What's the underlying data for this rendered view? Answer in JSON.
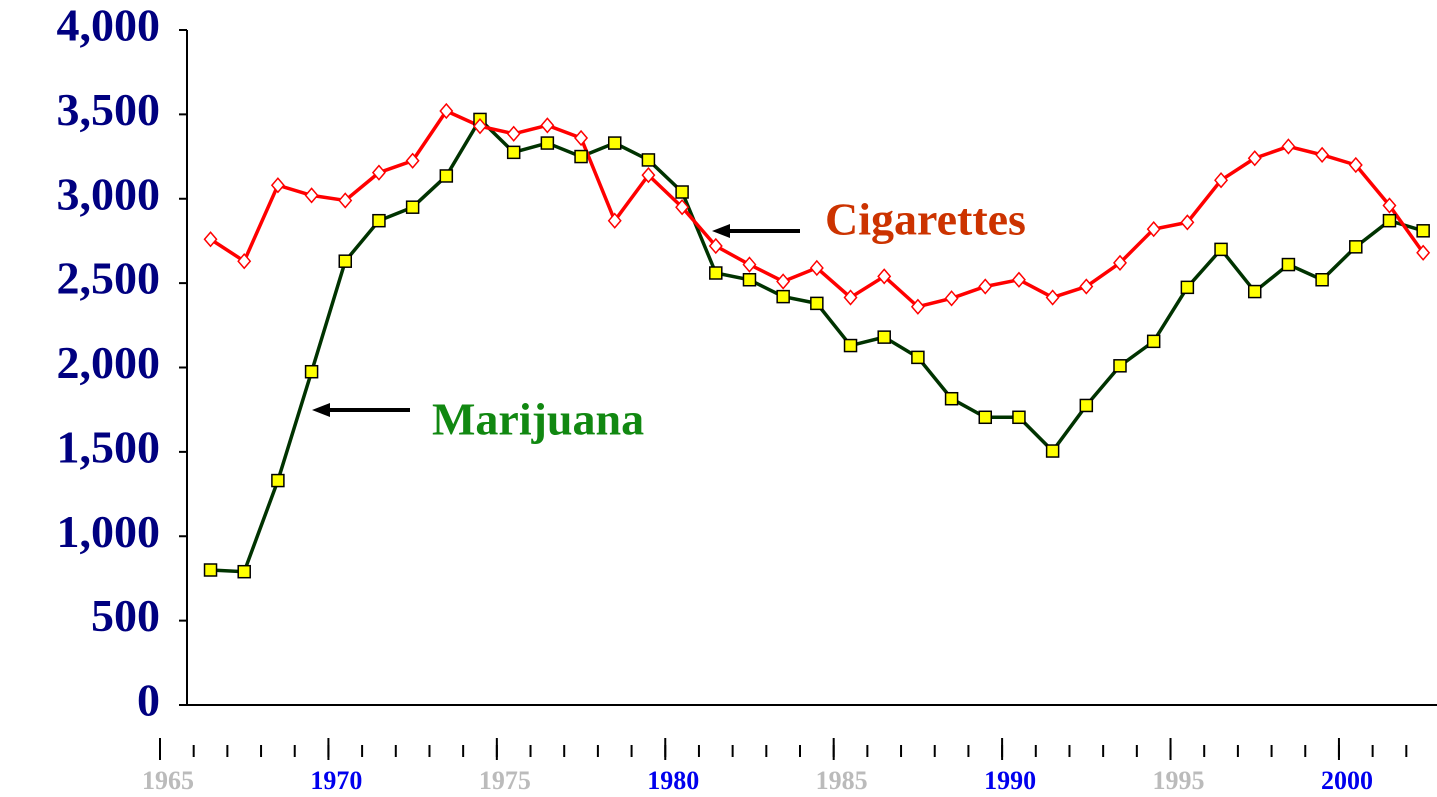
{
  "chart_data": {
    "type": "line",
    "x": [
      1966,
      1967,
      1968,
      1969,
      1970,
      1971,
      1972,
      1973,
      1974,
      1975,
      1976,
      1977,
      1978,
      1979,
      1980,
      1981,
      1982,
      1983,
      1984,
      1985,
      1986,
      1987,
      1988,
      1989,
      1990,
      1991,
      1992,
      1993,
      1994,
      1995,
      1996,
      1997,
      1998,
      1999,
      2000,
      2001,
      2002
    ],
    "series": [
      {
        "name": "Marijuana",
        "color": "#003300",
        "marker_color": "#ffff00",
        "values": [
          800,
          790,
          1330,
          1975,
          2630,
          2870,
          2950,
          3135,
          3470,
          3275,
          3330,
          3250,
          3330,
          3230,
          3040,
          2560,
          2520,
          2420,
          2380,
          2130,
          2180,
          2060,
          1815,
          1705,
          1705,
          1505,
          1775,
          2010,
          2155,
          2475,
          2700,
          2450,
          2610,
          2520,
          2715,
          2870,
          2810
        ]
      },
      {
        "name": "Cigarettes",
        "color": "#ff0000",
        "marker_color": "#ffffff",
        "values": [
          2760,
          2630,
          3080,
          3020,
          2990,
          3155,
          3225,
          3520,
          3430,
          3385,
          3435,
          3360,
          2870,
          3140,
          2950,
          2720,
          2610,
          2510,
          2590,
          2415,
          2540,
          2360,
          2410,
          2480,
          2520,
          2415,
          2480,
          2620,
          2820,
          2860,
          3110,
          3240,
          3310,
          3260,
          3200,
          2960,
          2680
        ]
      }
    ],
    "annotations": [
      {
        "text": "Cigarettes",
        "color": "#cc3300"
      },
      {
        "text": "Marijuana",
        "color": "#118811"
      }
    ],
    "ylim": [
      0,
      4000
    ],
    "yticks": [
      0,
      500,
      {
        "value": 1000,
        "label": "1,000"
      },
      {
        "value": 1500,
        "label": "1,500"
      },
      {
        "value": 2000,
        "label": "2,000"
      },
      {
        "value": 2500,
        "label": "2,500"
      },
      {
        "value": 3000,
        "label": "3,000"
      },
      {
        "value": 3500,
        "label": "3,500"
      },
      {
        "value": 4000,
        "label": "4,000"
      }
    ],
    "xlim": [
      1965,
      2003
    ],
    "xticks": [
      1965,
      1970,
      1975,
      1980,
      1985,
      1990,
      1995,
      2000
    ]
  }
}
